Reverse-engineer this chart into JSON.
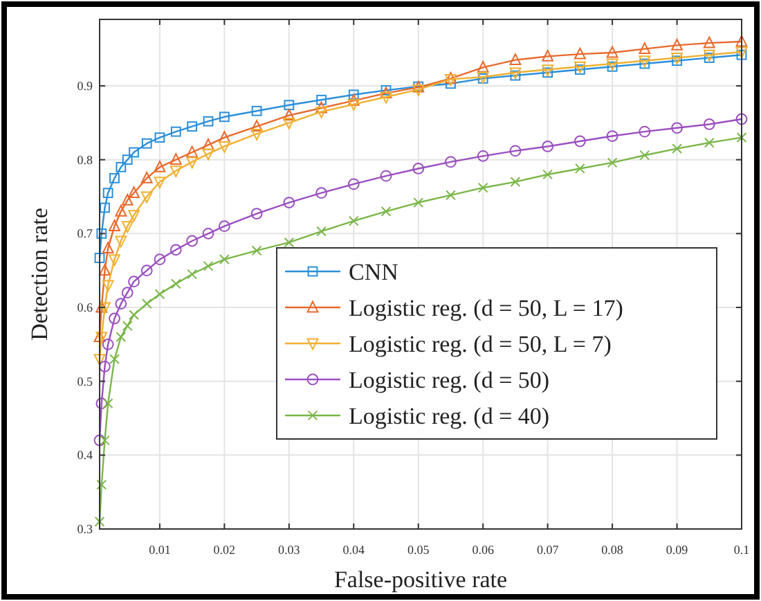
{
  "chart_data": {
    "type": "line",
    "xlabel": "False-positive rate",
    "ylabel": "Detection rate",
    "x": [
      0.0007,
      0.001,
      0.0015,
      0.002,
      0.003,
      0.004,
      0.005,
      0.006,
      0.008,
      0.01,
      0.0125,
      0.015,
      0.0175,
      0.02,
      0.025,
      0.03,
      0.035,
      0.04,
      0.045,
      0.05,
      0.055,
      0.06,
      0.065,
      0.07,
      0.075,
      0.08,
      0.085,
      0.09,
      0.095,
      0.1
    ],
    "xlim": [
      0.0007,
      0.1
    ],
    "xticks": [
      0.01,
      0.02,
      0.03,
      0.04,
      0.05,
      0.06,
      0.07,
      0.08,
      0.09,
      0.1
    ],
    "ylim": [
      0.3,
      0.99
    ],
    "yticks": [
      0.3,
      0.4,
      0.5,
      0.6,
      0.7,
      0.8,
      0.9
    ],
    "grid": true,
    "legend": "bottom right",
    "series": [
      {
        "name": "CNN",
        "color": "#2b8fd9",
        "marker": "square",
        "values": [
          0.667,
          0.7,
          0.735,
          0.755,
          0.775,
          0.79,
          0.8,
          0.81,
          0.822,
          0.83,
          0.838,
          0.845,
          0.852,
          0.858,
          0.866,
          0.874,
          0.881,
          0.888,
          0.894,
          0.899,
          0.903,
          0.91,
          0.914,
          0.918,
          0.922,
          0.926,
          0.93,
          0.934,
          0.938,
          0.942
        ]
      },
      {
        "name": "Logistic reg. (d = 50, L = 17)",
        "color": "#e8692c",
        "marker": "triangle",
        "values": [
          0.56,
          0.6,
          0.65,
          0.68,
          0.71,
          0.73,
          0.745,
          0.755,
          0.775,
          0.79,
          0.8,
          0.81,
          0.82,
          0.83,
          0.845,
          0.86,
          0.87,
          0.88,
          0.89,
          0.898,
          0.91,
          0.925,
          0.935,
          0.94,
          0.943,
          0.945,
          0.95,
          0.955,
          0.958,
          0.96
        ]
      },
      {
        "name": "Logistic reg. (d = 50, L = 7)",
        "color": "#f0b030",
        "marker": "triangle-down",
        "values": [
          0.53,
          0.56,
          0.6,
          0.63,
          0.665,
          0.69,
          0.71,
          0.725,
          0.75,
          0.77,
          0.785,
          0.797,
          0.808,
          0.818,
          0.835,
          0.85,
          0.865,
          0.875,
          0.885,
          0.895,
          0.909,
          0.912,
          0.918,
          0.922,
          0.926,
          0.93,
          0.934,
          0.938,
          0.942,
          0.946
        ]
      },
      {
        "name": "Logistic reg. (d = 50)",
        "color": "#9a4fc0",
        "marker": "circle",
        "values": [
          0.42,
          0.47,
          0.52,
          0.55,
          0.585,
          0.605,
          0.62,
          0.635,
          0.65,
          0.665,
          0.678,
          0.69,
          0.7,
          0.71,
          0.727,
          0.742,
          0.755,
          0.767,
          0.778,
          0.788,
          0.797,
          0.805,
          0.812,
          0.818,
          0.825,
          0.832,
          0.838,
          0.843,
          0.848,
          0.855
        ]
      },
      {
        "name": "Logistic reg. (d = 40)",
        "color": "#7ab648",
        "marker": "cross",
        "values": [
          0.31,
          0.36,
          0.42,
          0.47,
          0.53,
          0.56,
          0.575,
          0.59,
          0.605,
          0.618,
          0.632,
          0.645,
          0.656,
          0.665,
          0.677,
          0.688,
          0.703,
          0.717,
          0.73,
          0.742,
          0.752,
          0.762,
          0.77,
          0.78,
          0.788,
          0.796,
          0.806,
          0.815,
          0.823,
          0.83
        ]
      }
    ]
  }
}
